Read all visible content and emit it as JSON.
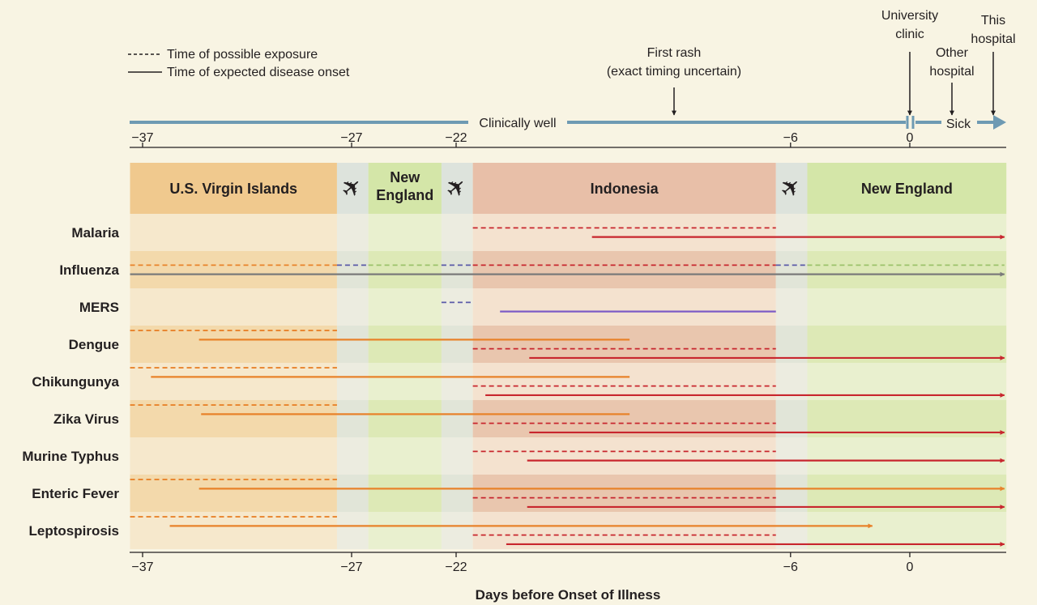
{
  "legend": {
    "dashed_label": "Time of possible exposure",
    "solid_label": "Time of expected disease onset"
  },
  "timeline": {
    "well_label": "Clinically well",
    "sick_label": "Sick",
    "events": [
      {
        "label_lines": [
          "First rash",
          "(exact timing uncertain)"
        ],
        "day": -11.3
      },
      {
        "label_lines": [
          "University",
          "clinic"
        ],
        "day": 0
      },
      {
        "label_lines": [
          "Other",
          "hospital"
        ],
        "day": 2.1
      },
      {
        "label_lines": [
          "This",
          "hospital"
        ],
        "day": 4.2
      }
    ],
    "line_color": "#6e9ab3"
  },
  "chart_data": {
    "type": "timeline",
    "xlabel": "Days before Onset of Illness",
    "xticks": [
      -37,
      -27,
      -22,
      -6,
      0
    ],
    "xtick_labels": [
      "−37",
      "−27",
      "−22",
      "−6",
      "0"
    ],
    "xlim": [
      -37.6,
      4.9
    ],
    "locations": [
      {
        "label": "U.S. Virgin Islands",
        "start": -37.6,
        "end": -27.7,
        "kind": "usvi"
      },
      {
        "label": "",
        "icon": "airplane-icon",
        "start": -27.7,
        "end": -26.2,
        "kind": "travel"
      },
      {
        "label": "New England",
        "start": -26.2,
        "end": -22.7,
        "kind": "ne"
      },
      {
        "label": "",
        "icon": "airplane-icon",
        "start": -22.7,
        "end": -21.2,
        "kind": "travel"
      },
      {
        "label": "Indonesia",
        "start": -21.2,
        "end": -6.7,
        "kind": "indo"
      },
      {
        "label": "",
        "icon": "airplane-icon",
        "start": -6.7,
        "end": -5.2,
        "kind": "travel"
      },
      {
        "label": "New England",
        "start": -5.2,
        "end": 4.9,
        "kind": "ne"
      }
    ],
    "colors": {
      "orange": "#e8822a",
      "red": "#c8262e",
      "blue": "#5a5aa8",
      "green": "#9cc26a",
      "gray": "#7a7a7a",
      "purple": "#7d5cc6"
    },
    "series": [
      {
        "name": "Malaria",
        "lines": [
          {
            "style": "dashed",
            "segments": [
              {
                "start": -21.2,
                "end": -6.7,
                "color": "red"
              }
            ]
          },
          {
            "style": "solid",
            "arrow": true,
            "segments": [
              {
                "start": -15.5,
                "end": 4.8,
                "color": "red"
              }
            ]
          }
        ]
      },
      {
        "name": "Influenza",
        "lines": [
          {
            "style": "dashed",
            "segments": [
              {
                "start": -37.6,
                "end": -27.7,
                "color": "orange"
              },
              {
                "start": -27.7,
                "end": -26.2,
                "color": "blue"
              },
              {
                "start": -26.2,
                "end": -22.7,
                "color": "green"
              },
              {
                "start": -22.7,
                "end": -21.2,
                "color": "blue"
              },
              {
                "start": -21.2,
                "end": -6.7,
                "color": "red"
              },
              {
                "start": -6.7,
                "end": -5.2,
                "color": "blue"
              },
              {
                "start": -5.2,
                "end": 4.8,
                "color": "green"
              }
            ]
          },
          {
            "style": "solid",
            "arrow": true,
            "segments": [
              {
                "start": -37.6,
                "end": 4.8,
                "color": "gray"
              }
            ]
          }
        ]
      },
      {
        "name": "MERS",
        "lines": [
          {
            "style": "dashed",
            "segments": [
              {
                "start": -22.7,
                "end": -21.2,
                "color": "blue"
              }
            ]
          },
          {
            "style": "solid",
            "segments": [
              {
                "start": -19.9,
                "end": -6.7,
                "color": "purple"
              }
            ]
          }
        ]
      },
      {
        "name": "Dengue",
        "lines": [
          {
            "style": "dashed",
            "segments": [
              {
                "start": -37.6,
                "end": -27.7,
                "color": "orange"
              }
            ]
          },
          {
            "style": "solid",
            "segments": [
              {
                "start": -34.3,
                "end": -13.7,
                "color": "orange"
              }
            ]
          },
          {
            "style": "dashed",
            "segments": [
              {
                "start": -21.2,
                "end": -6.7,
                "color": "red"
              }
            ]
          },
          {
            "style": "solid",
            "arrow": true,
            "segments": [
              {
                "start": -18.5,
                "end": 4.8,
                "color": "red"
              }
            ]
          }
        ]
      },
      {
        "name": "Chikungunya",
        "lines": [
          {
            "style": "dashed",
            "segments": [
              {
                "start": -37.6,
                "end": -27.7,
                "color": "orange"
              }
            ]
          },
          {
            "style": "solid",
            "segments": [
              {
                "start": -36.6,
                "end": -13.7,
                "color": "orange"
              }
            ]
          },
          {
            "style": "dashed",
            "segments": [
              {
                "start": -21.2,
                "end": -6.7,
                "color": "red"
              }
            ]
          },
          {
            "style": "solid",
            "arrow": true,
            "segments": [
              {
                "start": -20.6,
                "end": 4.8,
                "color": "red"
              }
            ]
          }
        ]
      },
      {
        "name": "Zika Virus",
        "lines": [
          {
            "style": "dashed",
            "segments": [
              {
                "start": -37.6,
                "end": -27.7,
                "color": "orange"
              }
            ]
          },
          {
            "style": "solid",
            "segments": [
              {
                "start": -34.2,
                "end": -13.7,
                "color": "orange"
              }
            ]
          },
          {
            "style": "dashed",
            "segments": [
              {
                "start": -21.2,
                "end": -6.7,
                "color": "red"
              }
            ]
          },
          {
            "style": "solid",
            "arrow": true,
            "segments": [
              {
                "start": -18.5,
                "end": 4.8,
                "color": "red"
              }
            ]
          }
        ]
      },
      {
        "name": "Murine Typhus",
        "lines": [
          {
            "style": "dashed",
            "segments": [
              {
                "start": -21.2,
                "end": -6.7,
                "color": "red"
              }
            ]
          },
          {
            "style": "solid",
            "arrow": true,
            "segments": [
              {
                "start": -18.6,
                "end": 4.8,
                "color": "red"
              }
            ]
          }
        ]
      },
      {
        "name": "Enteric Fever",
        "lines": [
          {
            "style": "dashed",
            "segments": [
              {
                "start": -37.6,
                "end": -27.7,
                "color": "orange"
              }
            ]
          },
          {
            "style": "solid",
            "arrow": true,
            "segments": [
              {
                "start": -34.3,
                "end": 4.8,
                "color": "orange"
              }
            ]
          },
          {
            "style": "dashed",
            "segments": [
              {
                "start": -21.2,
                "end": -6.7,
                "color": "red"
              }
            ]
          },
          {
            "style": "solid",
            "arrow": true,
            "segments": [
              {
                "start": -18.6,
                "end": 4.8,
                "color": "red"
              }
            ]
          }
        ]
      },
      {
        "name": "Leptospirosis",
        "lines": [
          {
            "style": "dashed",
            "segments": [
              {
                "start": -37.6,
                "end": -27.7,
                "color": "orange"
              }
            ]
          },
          {
            "style": "solid",
            "arrow": true,
            "segments": [
              {
                "start": -35.7,
                "end": -1.9,
                "color": "orange"
              }
            ]
          },
          {
            "style": "dashed",
            "segments": [
              {
                "start": -21.2,
                "end": -6.7,
                "color": "red"
              }
            ]
          },
          {
            "style": "solid",
            "arrow": true,
            "segments": [
              {
                "start": -19.6,
                "end": 4.8,
                "color": "red"
              }
            ]
          }
        ]
      }
    ]
  }
}
